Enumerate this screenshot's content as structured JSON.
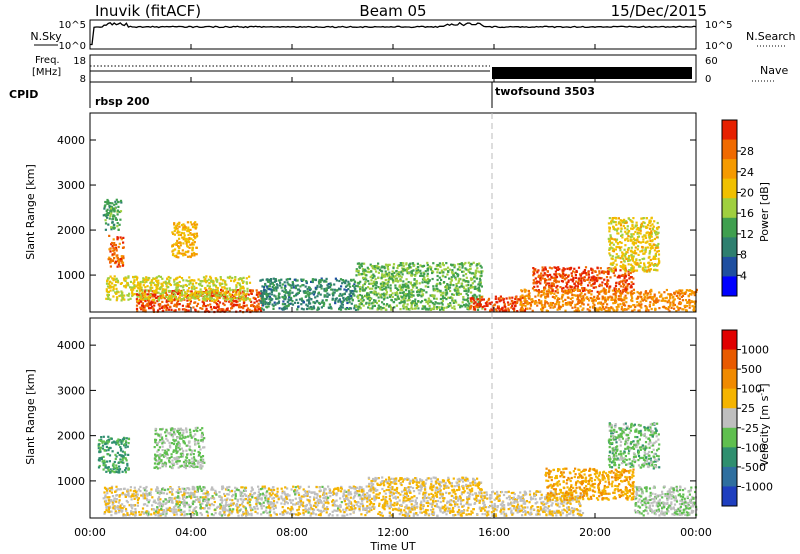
{
  "header": {
    "station": "Inuvik (fitACF)",
    "beam": "Beam 05",
    "date": "15/Dec/2015"
  },
  "sky_panel": {
    "left_label": "N.Sky",
    "right_label": "N.Search",
    "left_ticks": [
      "10^5",
      "10^0"
    ],
    "right_ticks": [
      "10^5",
      "10^0"
    ]
  },
  "freq_panel": {
    "left_label_line1": "Freq.",
    "left_label_line2": "[MHz]",
    "left_ticks": [
      "18",
      "8"
    ],
    "right_ticks": [
      "60",
      "0"
    ],
    "right_label": "Nave",
    "cpid_label": "CPID",
    "cpid_segments": [
      {
        "name": "rbsp 200",
        "start_hour": 0,
        "end_hour": 16
      },
      {
        "name": "twofsound 3503",
        "start_hour": 16,
        "end_hour": 24
      }
    ]
  },
  "colors": {
    "power": [
      "#0000ff",
      "#1f4fa0",
      "#2e7f6f",
      "#3f9f4f",
      "#9fcf3f",
      "#f0c000",
      "#f59a00",
      "#f06a00",
      "#e62000"
    ],
    "velocity": [
      "#1f3fbf",
      "#2f6f9f",
      "#2f8f6f",
      "#5fbf4f",
      "#bfbfbf",
      "#f5b400",
      "#f08a00",
      "#e85a00",
      "#e00000"
    ]
  },
  "chart_data": [
    {
      "type": "heatmap",
      "title": "",
      "xlabel": "",
      "ylabel": "Slant Range [km]",
      "x_range_hours": [
        0,
        24
      ],
      "x_ticks": [
        "00:00",
        "04:00",
        "08:00",
        "12:00",
        "16:00",
        "20:00",
        "00:00"
      ],
      "ylim": [
        180,
        4600
      ],
      "y_ticks": [
        1000,
        2000,
        3000,
        4000
      ],
      "colorbar_label": "Power [dB]",
      "colorbar_ticks": [
        "4",
        "8",
        "12",
        "16",
        "20",
        "24",
        "28"
      ],
      "colorbar_range": [
        0,
        30
      ],
      "echo_regions": [
        {
          "t0": 1.8,
          "t1": 6.8,
          "r0": 200,
          "r1": 700,
          "value": 27
        },
        {
          "t0": 0.6,
          "t1": 6.3,
          "r0": 450,
          "r1": 1000,
          "value": 17
        },
        {
          "t0": 0.7,
          "t1": 1.3,
          "r0": 1200,
          "r1": 1900,
          "value": 25
        },
        {
          "t0": 0.5,
          "t1": 1.2,
          "r0": 2000,
          "r1": 2700,
          "value": 11
        },
        {
          "t0": 3.2,
          "t1": 4.2,
          "r0": 1400,
          "r1": 2200,
          "value": 20
        },
        {
          "t0": 6.7,
          "t1": 10.5,
          "r0": 250,
          "r1": 950,
          "value": 9
        },
        {
          "t0": 10.5,
          "t1": 15.5,
          "r0": 250,
          "r1": 1300,
          "value": 13
        },
        {
          "t0": 15.0,
          "t1": 17.3,
          "r0": 220,
          "r1": 550,
          "value": 27
        },
        {
          "t0": 17.5,
          "t1": 21.5,
          "r0": 650,
          "r1": 1200,
          "value": 27
        },
        {
          "t0": 17.0,
          "t1": 24.0,
          "r0": 220,
          "r1": 700,
          "value": 23
        },
        {
          "t0": 20.5,
          "t1": 22.5,
          "r0": 1100,
          "r1": 2300,
          "value": 18
        }
      ]
    },
    {
      "type": "heatmap",
      "title": "",
      "xlabel": "Time UT",
      "ylabel": "Slant Range [km]",
      "x_range_hours": [
        0,
        24
      ],
      "x_ticks": [
        "00:00",
        "04:00",
        "08:00",
        "12:00",
        "16:00",
        "20:00",
        "00:00"
      ],
      "ylim": [
        180,
        4600
      ],
      "y_ticks": [
        1000,
        2000,
        3000,
        4000
      ],
      "colorbar_label": "Velocity [m s^-1]",
      "colorbar_ticks": [
        "1000",
        "500",
        "100",
        "25",
        "-25",
        "-100",
        "-500",
        "-1000"
      ],
      "colorbar_range": [
        -1000,
        1000
      ],
      "echo_regions": [
        {
          "t0": 0.3,
          "t1": 1.5,
          "r0": 1200,
          "r1": 2000,
          "value": -350
        },
        {
          "t0": 2.0,
          "t1": 7.0,
          "r0": 250,
          "r1": 900,
          "value": 0
        },
        {
          "t0": 2.5,
          "t1": 4.5,
          "r0": 1300,
          "r1": 2200,
          "value": -150
        },
        {
          "t0": 0.5,
          "t1": 2.0,
          "r0": 250,
          "r1": 900,
          "value": 120
        },
        {
          "t0": 7.0,
          "t1": 11.0,
          "r0": 250,
          "r1": 900,
          "value": 60
        },
        {
          "t0": 11.0,
          "t1": 15.5,
          "r0": 250,
          "r1": 1100,
          "value": 150
        },
        {
          "t0": 15.5,
          "t1": 19.5,
          "r0": 250,
          "r1": 800,
          "value": 80
        },
        {
          "t0": 18.0,
          "t1": 21.5,
          "r0": 600,
          "r1": 1300,
          "value": 300
        },
        {
          "t0": 20.5,
          "t1": 22.5,
          "r0": 1300,
          "r1": 2300,
          "value": -200
        },
        {
          "t0": 21.5,
          "t1": 24.0,
          "r0": 250,
          "r1": 900,
          "value": -80
        }
      ]
    }
  ],
  "footer": {
    "time_label": "Time UT"
  }
}
